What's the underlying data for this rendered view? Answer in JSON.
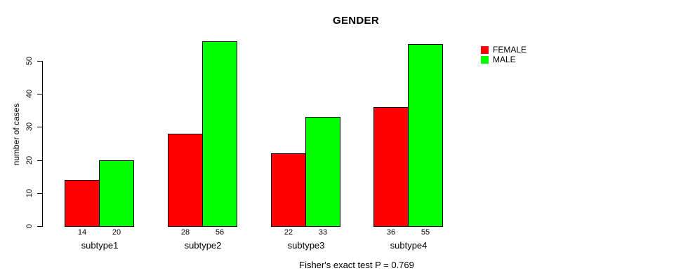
{
  "chart_data": {
    "type": "bar",
    "title": "GENDER",
    "ylabel": "number of cases",
    "xlabel": "",
    "categories": [
      "subtype1",
      "subtype2",
      "subtype3",
      "subtype4"
    ],
    "series": [
      {
        "name": "FEMALE",
        "color": "#ff0000",
        "values": [
          14,
          28,
          22,
          36
        ]
      },
      {
        "name": "MALE",
        "color": "#00ff00",
        "values": [
          20,
          56,
          33,
          55
        ]
      }
    ],
    "yticks": [
      0,
      10,
      20,
      30,
      40,
      50
    ],
    "ylim": [
      0,
      50
    ],
    "grid": false,
    "bar_borders_color": "#000000",
    "bar_value_labels": true,
    "legend_position": "top-right",
    "annotation": "Fisher's exact test P = 0.769"
  }
}
